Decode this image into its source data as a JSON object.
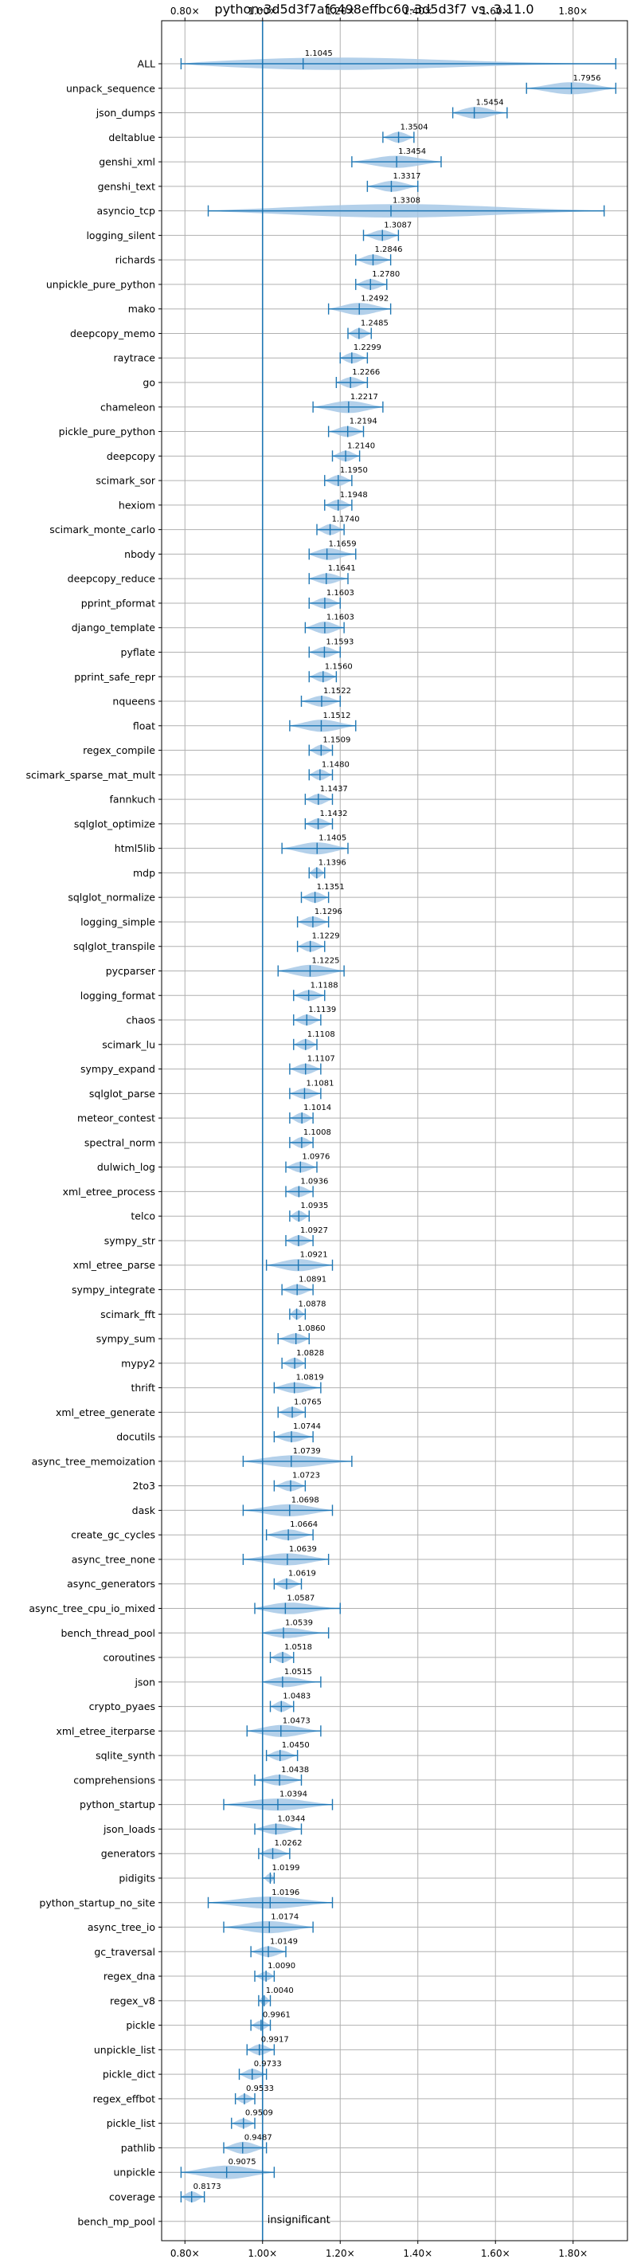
{
  "chart_data": {
    "type": "violin",
    "title": "python-3d5d3f7af6498effbc60-3d5d3f7 vs. 3.11.0",
    "xlabel": "",
    "ylabel": "",
    "xlim": [
      0.74,
      1.94
    ],
    "xticks": [
      0.8,
      1.0,
      1.2,
      1.4,
      1.6,
      1.8
    ],
    "xtick_labels": [
      "0.80×",
      "1.00×",
      "1.20×",
      "1.40×",
      "1.60×",
      "1.80×"
    ],
    "reference_line": 1.0,
    "grid": true,
    "colors": {
      "line": "#1f77b4",
      "violin": "#a6c8e6",
      "grid": "#b0b0b0"
    },
    "benchmarks": [
      {
        "name": "ALL",
        "value": 1.1045,
        "label": "1.1045",
        "min": 0.79,
        "max": 1.91,
        "width": 0.5
      },
      {
        "name": "unpack_sequence",
        "value": 1.7956,
        "label": "1.7956",
        "min": 1.68,
        "max": 1.91,
        "width": 0.45
      },
      {
        "name": "json_dumps",
        "value": 1.5454,
        "label": "1.5454",
        "min": 1.49,
        "max": 1.63,
        "width": 0.45
      },
      {
        "name": "deltablue",
        "value": 1.3504,
        "label": "1.3504",
        "min": 1.31,
        "max": 1.39,
        "width": 0.4
      },
      {
        "name": "genshi_xml",
        "value": 1.3454,
        "label": "1.3454",
        "min": 1.23,
        "max": 1.46,
        "width": 0.45
      },
      {
        "name": "genshi_text",
        "value": 1.3317,
        "label": "1.3317",
        "min": 1.27,
        "max": 1.4,
        "width": 0.4
      },
      {
        "name": "asyncio_tcp",
        "value": 1.3308,
        "label": "1.3308",
        "min": 0.86,
        "max": 1.88,
        "width": 0.5
      },
      {
        "name": "logging_silent",
        "value": 1.3087,
        "label": "1.3087",
        "min": 1.26,
        "max": 1.35,
        "width": 0.4
      },
      {
        "name": "richards",
        "value": 1.2846,
        "label": "1.2846",
        "min": 1.24,
        "max": 1.33,
        "width": 0.4
      },
      {
        "name": "unpickle_pure_python",
        "value": 1.278,
        "label": "1.2780",
        "min": 1.24,
        "max": 1.32,
        "width": 0.4
      },
      {
        "name": "mako",
        "value": 1.2492,
        "label": "1.2492",
        "min": 1.17,
        "max": 1.33,
        "width": 0.45
      },
      {
        "name": "deepcopy_memo",
        "value": 1.2485,
        "label": "1.2485",
        "min": 1.22,
        "max": 1.28,
        "width": 0.4
      },
      {
        "name": "raytrace",
        "value": 1.2299,
        "label": "1.2299",
        "min": 1.2,
        "max": 1.27,
        "width": 0.4
      },
      {
        "name": "go",
        "value": 1.2266,
        "label": "1.2266",
        "min": 1.19,
        "max": 1.27,
        "width": 0.4
      },
      {
        "name": "chameleon",
        "value": 1.2217,
        "label": "1.2217",
        "min": 1.13,
        "max": 1.31,
        "width": 0.45
      },
      {
        "name": "pickle_pure_python",
        "value": 1.2194,
        "label": "1.2194",
        "min": 1.17,
        "max": 1.26,
        "width": 0.4
      },
      {
        "name": "deepcopy",
        "value": 1.214,
        "label": "1.2140",
        "min": 1.18,
        "max": 1.25,
        "width": 0.4
      },
      {
        "name": "scimark_sor",
        "value": 1.195,
        "label": "1.1950",
        "min": 1.16,
        "max": 1.23,
        "width": 0.4
      },
      {
        "name": "hexiom",
        "value": 1.1948,
        "label": "1.1948",
        "min": 1.16,
        "max": 1.23,
        "width": 0.4
      },
      {
        "name": "scimark_monte_carlo",
        "value": 1.174,
        "label": "1.1740",
        "min": 1.14,
        "max": 1.21,
        "width": 0.4
      },
      {
        "name": "nbody",
        "value": 1.1659,
        "label": "1.1659",
        "min": 1.12,
        "max": 1.24,
        "width": 0.45
      },
      {
        "name": "deepcopy_reduce",
        "value": 1.1641,
        "label": "1.1641",
        "min": 1.12,
        "max": 1.22,
        "width": 0.4
      },
      {
        "name": "pprint_pformat",
        "value": 1.1603,
        "label": "1.1603",
        "min": 1.12,
        "max": 1.2,
        "width": 0.4
      },
      {
        "name": "django_template",
        "value": 1.1603,
        "label": "1.1603",
        "min": 1.11,
        "max": 1.21,
        "width": 0.45
      },
      {
        "name": "pyflate",
        "value": 1.1593,
        "label": "1.1593",
        "min": 1.12,
        "max": 1.2,
        "width": 0.4
      },
      {
        "name": "pprint_safe_repr",
        "value": 1.156,
        "label": "1.1560",
        "min": 1.12,
        "max": 1.19,
        "width": 0.4
      },
      {
        "name": "nqueens",
        "value": 1.1522,
        "label": "1.1522",
        "min": 1.1,
        "max": 1.2,
        "width": 0.4
      },
      {
        "name": "float",
        "value": 1.1512,
        "label": "1.1512",
        "min": 1.07,
        "max": 1.24,
        "width": 0.45
      },
      {
        "name": "regex_compile",
        "value": 1.1509,
        "label": "1.1509",
        "min": 1.12,
        "max": 1.18,
        "width": 0.4
      },
      {
        "name": "scimark_sparse_mat_mult",
        "value": 1.148,
        "label": "1.1480",
        "min": 1.12,
        "max": 1.18,
        "width": 0.4
      },
      {
        "name": "fannkuch",
        "value": 1.1437,
        "label": "1.1437",
        "min": 1.11,
        "max": 1.18,
        "width": 0.4
      },
      {
        "name": "sqlglot_optimize",
        "value": 1.1432,
        "label": "1.1432",
        "min": 1.11,
        "max": 1.18,
        "width": 0.4
      },
      {
        "name": "html5lib",
        "value": 1.1405,
        "label": "1.1405",
        "min": 1.05,
        "max": 1.22,
        "width": 0.45
      },
      {
        "name": "mdp",
        "value": 1.1396,
        "label": "1.1396",
        "min": 1.12,
        "max": 1.16,
        "width": 0.4
      },
      {
        "name": "sqlglot_normalize",
        "value": 1.1351,
        "label": "1.1351",
        "min": 1.1,
        "max": 1.17,
        "width": 0.4
      },
      {
        "name": "logging_simple",
        "value": 1.1296,
        "label": "1.1296",
        "min": 1.09,
        "max": 1.17,
        "width": 0.4
      },
      {
        "name": "sqlglot_transpile",
        "value": 1.1229,
        "label": "1.1229",
        "min": 1.09,
        "max": 1.16,
        "width": 0.4
      },
      {
        "name": "pycparser",
        "value": 1.1225,
        "label": "1.1225",
        "min": 1.04,
        "max": 1.21,
        "width": 0.45
      },
      {
        "name": "logging_format",
        "value": 1.1188,
        "label": "1.1188",
        "min": 1.08,
        "max": 1.16,
        "width": 0.4
      },
      {
        "name": "chaos",
        "value": 1.1139,
        "label": "1.1139",
        "min": 1.08,
        "max": 1.15,
        "width": 0.4
      },
      {
        "name": "scimark_lu",
        "value": 1.1108,
        "label": "1.1108",
        "min": 1.08,
        "max": 1.14,
        "width": 0.4
      },
      {
        "name": "sympy_expand",
        "value": 1.1107,
        "label": "1.1107",
        "min": 1.07,
        "max": 1.15,
        "width": 0.4
      },
      {
        "name": "sqlglot_parse",
        "value": 1.1081,
        "label": "1.1081",
        "min": 1.07,
        "max": 1.15,
        "width": 0.4
      },
      {
        "name": "meteor_contest",
        "value": 1.1014,
        "label": "1.1014",
        "min": 1.07,
        "max": 1.13,
        "width": 0.4
      },
      {
        "name": "spectral_norm",
        "value": 1.1008,
        "label": "1.1008",
        "min": 1.07,
        "max": 1.13,
        "width": 0.4
      },
      {
        "name": "dulwich_log",
        "value": 1.0976,
        "label": "1.0976",
        "min": 1.06,
        "max": 1.14,
        "width": 0.4
      },
      {
        "name": "xml_etree_process",
        "value": 1.0936,
        "label": "1.0936",
        "min": 1.06,
        "max": 1.13,
        "width": 0.4
      },
      {
        "name": "telco",
        "value": 1.0935,
        "label": "1.0935",
        "min": 1.07,
        "max": 1.12,
        "width": 0.4
      },
      {
        "name": "sympy_str",
        "value": 1.0927,
        "label": "1.0927",
        "min": 1.06,
        "max": 1.13,
        "width": 0.4
      },
      {
        "name": "xml_etree_parse",
        "value": 1.0921,
        "label": "1.0921",
        "min": 1.01,
        "max": 1.18,
        "width": 0.45
      },
      {
        "name": "sympy_integrate",
        "value": 1.0891,
        "label": "1.0891",
        "min": 1.05,
        "max": 1.13,
        "width": 0.4
      },
      {
        "name": "scimark_fft",
        "value": 1.0878,
        "label": "1.0878",
        "min": 1.07,
        "max": 1.11,
        "width": 0.4
      },
      {
        "name": "sympy_sum",
        "value": 1.086,
        "label": "1.0860",
        "min": 1.04,
        "max": 1.12,
        "width": 0.4
      },
      {
        "name": "mypy2",
        "value": 1.0828,
        "label": "1.0828",
        "min": 1.05,
        "max": 1.11,
        "width": 0.4
      },
      {
        "name": "thrift",
        "value": 1.0819,
        "label": "1.0819",
        "min": 1.03,
        "max": 1.15,
        "width": 0.4
      },
      {
        "name": "xml_etree_generate",
        "value": 1.0765,
        "label": "1.0765",
        "min": 1.04,
        "max": 1.11,
        "width": 0.4
      },
      {
        "name": "docutils",
        "value": 1.0744,
        "label": "1.0744",
        "min": 1.03,
        "max": 1.13,
        "width": 0.4
      },
      {
        "name": "async_tree_memoization",
        "value": 1.0739,
        "label": "1.0739",
        "min": 0.95,
        "max": 1.23,
        "width": 0.45
      },
      {
        "name": "2to3",
        "value": 1.0723,
        "label": "1.0723",
        "min": 1.03,
        "max": 1.11,
        "width": 0.4
      },
      {
        "name": "dask",
        "value": 1.0698,
        "label": "1.0698",
        "min": 0.95,
        "max": 1.18,
        "width": 0.45
      },
      {
        "name": "create_gc_cycles",
        "value": 1.0664,
        "label": "1.0664",
        "min": 1.01,
        "max": 1.13,
        "width": 0.4
      },
      {
        "name": "async_tree_none",
        "value": 1.0639,
        "label": "1.0639",
        "min": 0.95,
        "max": 1.17,
        "width": 0.45
      },
      {
        "name": "async_generators",
        "value": 1.0619,
        "label": "1.0619",
        "min": 1.03,
        "max": 1.1,
        "width": 0.4
      },
      {
        "name": "async_tree_cpu_io_mixed",
        "value": 1.0587,
        "label": "1.0587",
        "min": 0.98,
        "max": 1.2,
        "width": 0.45
      },
      {
        "name": "bench_thread_pool",
        "value": 1.0539,
        "label": "1.0539",
        "min": 1.0,
        "max": 1.17,
        "width": 0.4
      },
      {
        "name": "coroutines",
        "value": 1.0518,
        "label": "1.0518",
        "min": 1.02,
        "max": 1.08,
        "width": 0.4
      },
      {
        "name": "json",
        "value": 1.0515,
        "label": "1.0515",
        "min": 1.0,
        "max": 1.15,
        "width": 0.4
      },
      {
        "name": "crypto_pyaes",
        "value": 1.0483,
        "label": "1.0483",
        "min": 1.02,
        "max": 1.08,
        "width": 0.4
      },
      {
        "name": "xml_etree_iterparse",
        "value": 1.0473,
        "label": "1.0473",
        "min": 0.96,
        "max": 1.15,
        "width": 0.45
      },
      {
        "name": "sqlite_synth",
        "value": 1.045,
        "label": "1.0450",
        "min": 1.01,
        "max": 1.09,
        "width": 0.4
      },
      {
        "name": "comprehensions",
        "value": 1.0438,
        "label": "1.0438",
        "min": 0.98,
        "max": 1.1,
        "width": 0.4
      },
      {
        "name": "python_startup",
        "value": 1.0394,
        "label": "1.0394",
        "min": 0.9,
        "max": 1.18,
        "width": 0.45
      },
      {
        "name": "json_loads",
        "value": 1.0344,
        "label": "1.0344",
        "min": 0.98,
        "max": 1.1,
        "width": 0.4
      },
      {
        "name": "generators",
        "value": 1.0262,
        "label": "1.0262",
        "min": 0.99,
        "max": 1.07,
        "width": 0.4
      },
      {
        "name": "pidigits",
        "value": 1.0199,
        "label": "1.0199",
        "min": 1.0,
        "max": 1.03,
        "width": 0.35
      },
      {
        "name": "python_startup_no_site",
        "value": 1.0196,
        "label": "1.0196",
        "min": 0.86,
        "max": 1.18,
        "width": 0.45
      },
      {
        "name": "async_tree_io",
        "value": 1.0174,
        "label": "1.0174",
        "min": 0.9,
        "max": 1.13,
        "width": 0.45
      },
      {
        "name": "gc_traversal",
        "value": 1.0149,
        "label": "1.0149",
        "min": 0.97,
        "max": 1.06,
        "width": 0.4
      },
      {
        "name": "regex_dna",
        "value": 1.009,
        "label": "1.0090",
        "min": 0.98,
        "max": 1.03,
        "width": 0.35
      },
      {
        "name": "regex_v8",
        "value": 1.004,
        "label": "1.0040",
        "min": 0.99,
        "max": 1.02,
        "width": 0.35
      },
      {
        "name": "pickle",
        "value": 0.9961,
        "label": "0.9961",
        "min": 0.97,
        "max": 1.02,
        "width": 0.35
      },
      {
        "name": "unpickle_list",
        "value": 0.9917,
        "label": "0.9917",
        "min": 0.96,
        "max": 1.03,
        "width": 0.4
      },
      {
        "name": "pickle_dict",
        "value": 0.9733,
        "label": "0.9733",
        "min": 0.94,
        "max": 1.01,
        "width": 0.4
      },
      {
        "name": "regex_effbot",
        "value": 0.9533,
        "label": "0.9533",
        "min": 0.93,
        "max": 0.98,
        "width": 0.35
      },
      {
        "name": "pickle_list",
        "value": 0.9509,
        "label": "0.9509",
        "min": 0.92,
        "max": 0.98,
        "width": 0.35
      },
      {
        "name": "pathlib",
        "value": 0.9487,
        "label": "0.9487",
        "min": 0.9,
        "max": 1.01,
        "width": 0.45
      },
      {
        "name": "unpickle",
        "value": 0.9075,
        "label": "0.9075",
        "min": 0.79,
        "max": 1.03,
        "width": 0.5
      },
      {
        "name": "coverage",
        "value": 0.8173,
        "label": "0.8173",
        "min": 0.79,
        "max": 0.85,
        "width": 0.4
      },
      {
        "name": "bench_mp_pool",
        "value": null,
        "label": "",
        "note": "insignificant"
      }
    ]
  }
}
